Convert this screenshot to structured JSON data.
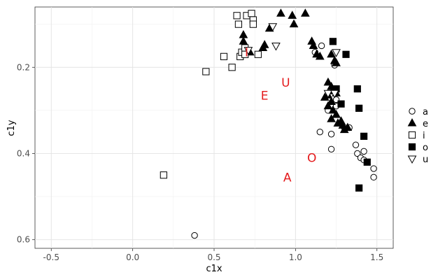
{
  "chart_data": {
    "type": "scatter",
    "title": "",
    "xlabel": "c1x",
    "ylabel": "c1y",
    "xlim": [
      -0.6,
      1.6
    ],
    "ylim": [
      0.62,
      0.06
    ],
    "y_reversed": true,
    "x_ticks": [
      -0.5,
      0.0,
      0.5,
      1.0,
      1.5
    ],
    "x_tick_labels": [
      "-0.5",
      "0.0",
      "0.5",
      "1.0",
      "1.5"
    ],
    "y_ticks": [
      0.2,
      0.4,
      0.6
    ],
    "y_tick_labels": [
      "0.2",
      "0.4",
      "0.6"
    ],
    "grid": true,
    "legend_position": "right",
    "marker_color": "#000000",
    "label_color": "#e41a1c",
    "series": [
      {
        "name": "a",
        "marker": "circle-open",
        "points": [
          [
            0.38,
            0.59
          ],
          [
            1.15,
            0.35
          ],
          [
            1.22,
            0.355
          ],
          [
            1.22,
            0.39
          ],
          [
            1.3,
            0.34
          ],
          [
            1.33,
            0.34
          ],
          [
            1.37,
            0.38
          ],
          [
            1.38,
            0.4
          ],
          [
            1.4,
            0.41
          ],
          [
            1.42,
            0.395
          ],
          [
            1.42,
            0.415
          ],
          [
            1.48,
            0.435
          ],
          [
            1.48,
            0.455
          ],
          [
            1.25,
            0.275
          ],
          [
            1.25,
            0.29
          ],
          [
            1.24,
            0.195
          ],
          [
            1.12,
            0.165
          ],
          [
            1.16,
            0.15
          ],
          [
            1.2,
            0.3
          ]
        ]
      },
      {
        "name": "e",
        "marker": "triangle-filled",
        "points": [
          [
            0.68,
            0.125
          ],
          [
            0.68,
            0.14
          ],
          [
            0.72,
            0.165
          ],
          [
            0.8,
            0.155
          ],
          [
            0.81,
            0.148
          ],
          [
            0.84,
            0.11
          ],
          [
            0.91,
            0.075
          ],
          [
            0.98,
            0.08
          ],
          [
            0.99,
            0.1
          ],
          [
            1.06,
            0.075
          ],
          [
            1.1,
            0.14
          ],
          [
            1.11,
            0.15
          ],
          [
            1.13,
            0.17
          ],
          [
            1.15,
            0.175
          ],
          [
            1.22,
            0.17
          ],
          [
            1.24,
            0.185
          ],
          [
            1.25,
            0.19
          ],
          [
            1.2,
            0.235
          ],
          [
            1.22,
            0.245
          ],
          [
            1.23,
            0.255
          ],
          [
            1.24,
            0.255
          ],
          [
            1.25,
            0.26
          ],
          [
            1.22,
            0.28
          ],
          [
            1.2,
            0.29
          ],
          [
            1.23,
            0.3
          ],
          [
            1.25,
            0.31
          ],
          [
            1.22,
            0.32
          ],
          [
            1.26,
            0.33
          ],
          [
            1.28,
            0.325
          ],
          [
            1.29,
            0.335
          ],
          [
            1.3,
            0.345
          ],
          [
            1.32,
            0.34
          ],
          [
            1.18,
            0.27
          ],
          [
            1.2,
            0.265
          ]
        ]
      },
      {
        "name": "i",
        "marker": "square-open",
        "points": [
          [
            0.19,
            0.45
          ],
          [
            0.45,
            0.21
          ],
          [
            0.56,
            0.175
          ],
          [
            0.61,
            0.2
          ],
          [
            0.64,
            0.08
          ],
          [
            0.65,
            0.1
          ],
          [
            0.66,
            0.175
          ],
          [
            0.67,
            0.165
          ],
          [
            0.69,
            0.155
          ],
          [
            0.7,
            0.08
          ],
          [
            0.73,
            0.075
          ],
          [
            0.74,
            0.09
          ],
          [
            0.74,
            0.1
          ],
          [
            0.77,
            0.17
          ],
          [
            0.69,
            0.17
          ]
        ]
      },
      {
        "name": "o",
        "marker": "square-filled",
        "points": [
          [
            1.23,
            0.14
          ],
          [
            1.25,
            0.25
          ],
          [
            1.28,
            0.285
          ],
          [
            1.31,
            0.17
          ],
          [
            1.38,
            0.25
          ],
          [
            1.39,
            0.295
          ],
          [
            1.42,
            0.36
          ],
          [
            1.44,
            0.42
          ],
          [
            1.39,
            0.48
          ]
        ]
      },
      {
        "name": "u",
        "marker": "triangle-open",
        "points": [
          [
            0.86,
            0.105
          ],
          [
            0.88,
            0.15
          ],
          [
            1.2,
            0.26
          ],
          [
            1.24,
            0.26
          ],
          [
            1.25,
            0.165
          ],
          [
            0.71,
            0.16
          ]
        ]
      }
    ],
    "annotations": [
      {
        "text": "E",
        "x": 0.81,
        "y": 0.265
      },
      {
        "text": "U",
        "x": 0.94,
        "y": 0.235
      },
      {
        "text": "O",
        "x": 1.1,
        "y": 0.41
      },
      {
        "text": "A",
        "x": 0.95,
        "y": 0.455
      },
      {
        "text": "I",
        "x": 0.7,
        "y": 0.165
      }
    ],
    "legend": [
      {
        "label": "a",
        "marker": "circle-open"
      },
      {
        "label": "e",
        "marker": "triangle-filled"
      },
      {
        "label": "i",
        "marker": "square-open"
      },
      {
        "label": "o",
        "marker": "square-filled"
      },
      {
        "label": "u",
        "marker": "triangle-open"
      }
    ]
  }
}
